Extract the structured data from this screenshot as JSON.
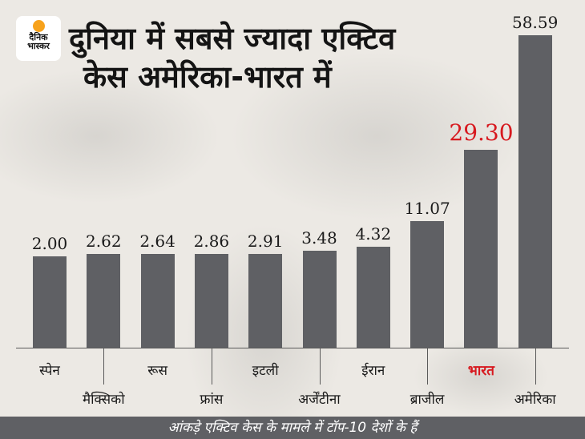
{
  "brand": {
    "logo_line1": "दैनिक",
    "logo_line2": "भास्कर",
    "accent_color": "#f7a21b"
  },
  "header": {
    "title_line1": "दुनिया में सबसे ज्यादा एक्टिव",
    "title_line2": "केस अमेरिका-भारत में"
  },
  "footer": {
    "note": "आंकड़े एक्टिव केस के मामले में टॉप-10 देशों के हैं"
  },
  "colors": {
    "bar": "#5f6064",
    "highlight": "#d7191f",
    "background": "#ece9e4"
  },
  "chart_data": {
    "type": "bar",
    "title": "दुनिया में सबसे ज्यादा एक्टिव केस अमेरिका-भारत में",
    "subtitle": "आंकड़े एक्टिव केस के मामले में टॉप-10 देशों के हैं",
    "categories": [
      "स्पेन",
      "मैक्सिको",
      "रूस",
      "फ्रांस",
      "इटली",
      "अर्जेंटीना",
      "ईरान",
      "ब्राजील",
      "भारत",
      "अमेरिका"
    ],
    "values": [
      2.0,
      2.62,
      2.64,
      2.86,
      2.91,
      3.48,
      4.32,
      11.07,
      29.3,
      58.59
    ],
    "value_labels": [
      "2.00",
      "2.62",
      "2.64",
      "2.86",
      "2.91",
      "3.48",
      "4.32",
      "11.07",
      "29.30",
      "58.59"
    ],
    "highlight_index": 8,
    "xlabel": "",
    "ylabel": "",
    "grid": false,
    "legend": "none"
  }
}
